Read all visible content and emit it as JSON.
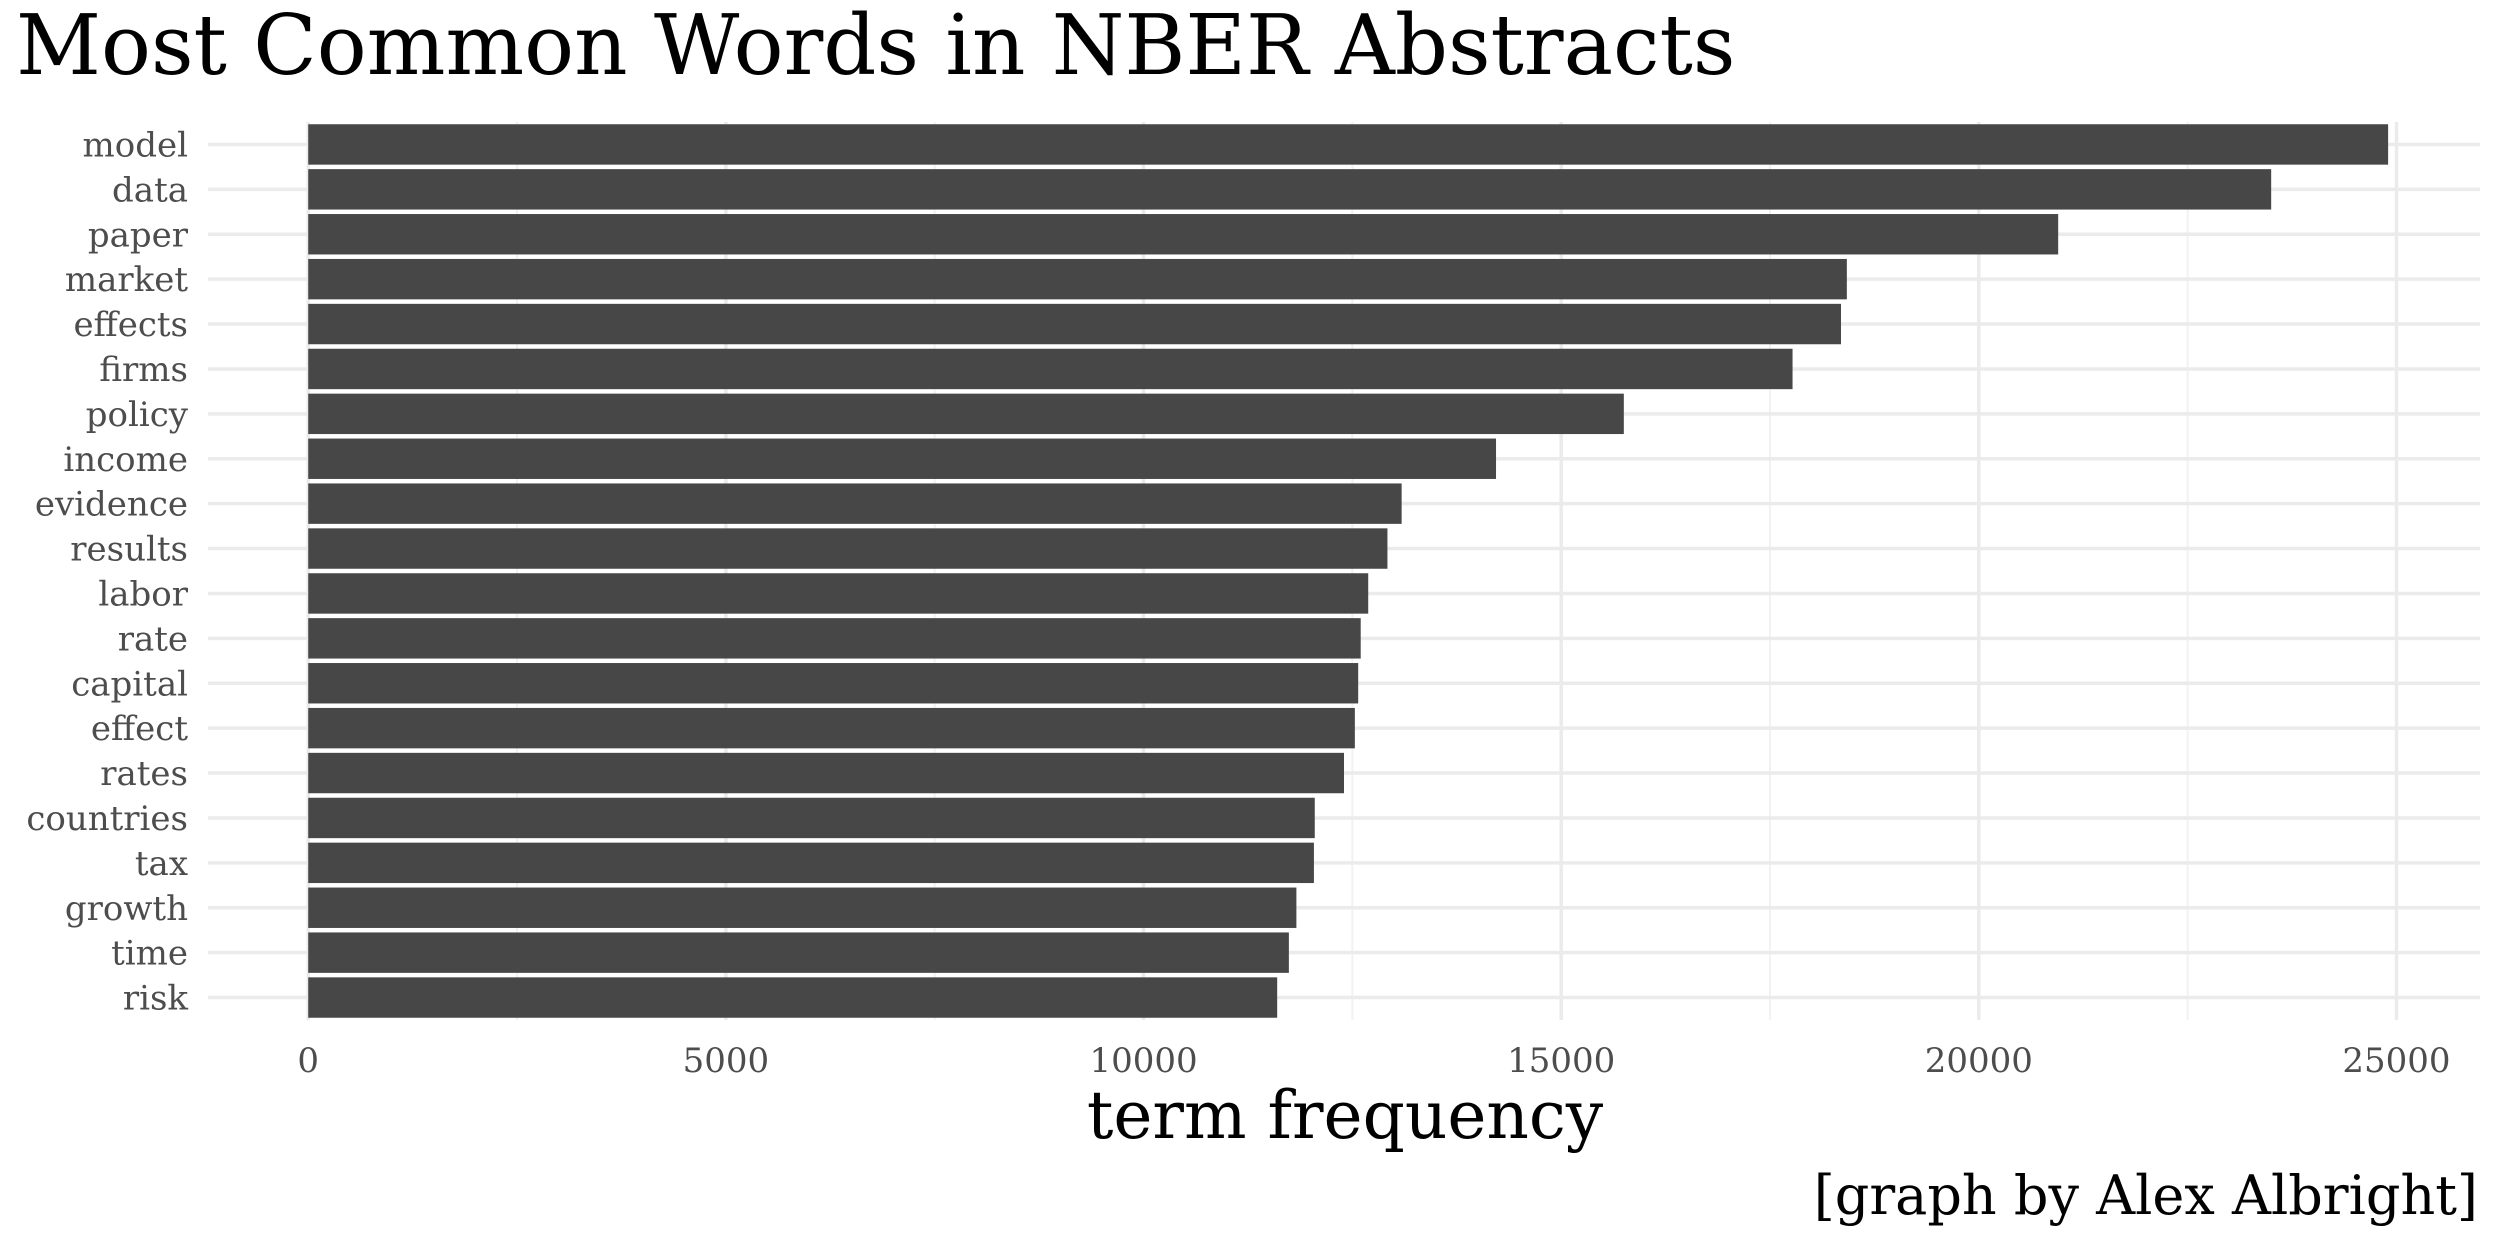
{
  "colors": {
    "bar": "#474747",
    "grid_major": "#ebebeb",
    "grid_minor": "#f2f2f2",
    "tick_text": "#4d4d4d",
    "title_text": "#000000"
  },
  "chart_data": {
    "type": "bar",
    "orientation": "horizontal",
    "title": "Most Common Words in NBER Abstracts",
    "xlabel": "term frequency",
    "ylabel": "",
    "caption": "[graph by Alex Albright]",
    "categories": [
      "model",
      "data",
      "paper",
      "market",
      "effects",
      "firms",
      "policy",
      "income",
      "evidence",
      "results",
      "labor",
      "rate",
      "capital",
      "effect",
      "rates",
      "countries",
      "tax",
      "growth",
      "time",
      "risk"
    ],
    "values": [
      24900,
      23500,
      20950,
      18420,
      18350,
      17770,
      15750,
      14220,
      13090,
      12920,
      12690,
      12600,
      12570,
      12530,
      12400,
      12050,
      12040,
      11830,
      11740,
      11600
    ],
    "xlim": [
      -1200,
      26000
    ],
    "x_ticks": [
      0,
      5000,
      10000,
      15000,
      20000,
      25000
    ],
    "x_tick_labels": [
      "0",
      "5000",
      "10000",
      "15000",
      "20000",
      "25000"
    ],
    "grid": true,
    "legend": "none"
  }
}
